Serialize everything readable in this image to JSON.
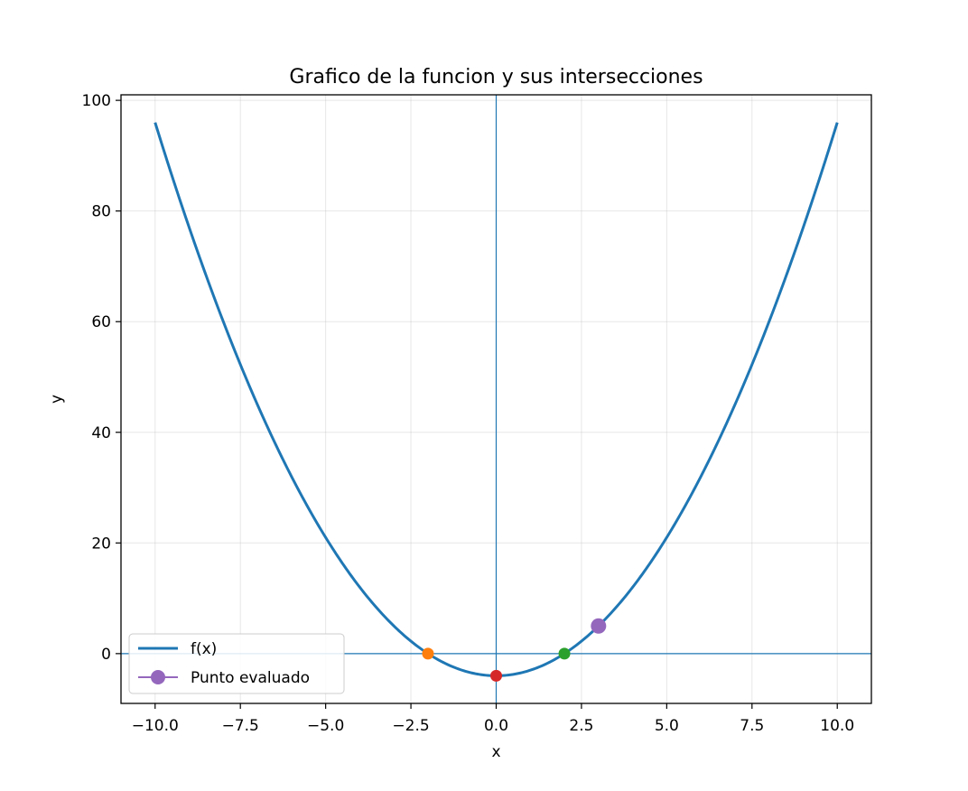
{
  "chart_data": {
    "type": "line",
    "title": "Grafico de la funcion y sus intersecciones",
    "xlabel": "x",
    "ylabel": "y",
    "xlim": [
      -11,
      11
    ],
    "ylim": [
      -9,
      101
    ],
    "x_ticks": [
      -10,
      -7.5,
      -5,
      -2.5,
      0,
      2.5,
      5,
      7.5,
      10
    ],
    "x_tick_labels": [
      "−10.0",
      "−7.5",
      "−5.0",
      "−2.5",
      "0.0",
      "2.5",
      "5.0",
      "7.5",
      "10.0"
    ],
    "y_ticks": [
      0,
      20,
      40,
      60,
      80,
      100
    ],
    "y_tick_labels": [
      "0",
      "20",
      "40",
      "60",
      "80",
      "100"
    ],
    "grid": true,
    "reference_lines": {
      "x": 0,
      "y": 0,
      "color": "#1f77b4"
    },
    "series": [
      {
        "name": "f(x)",
        "kind": "curve",
        "function": "x^2 - 4",
        "x_range": [
          -10,
          10
        ],
        "color": "#1f77b4"
      }
    ],
    "highlight_points": [
      {
        "x": -2,
        "y": 0,
        "color": "#ff7f0e"
      },
      {
        "x": 2,
        "y": 0,
        "color": "#2ca02c"
      },
      {
        "x": 0,
        "y": -4,
        "color": "#d62728"
      }
    ],
    "evaluated_point": {
      "name": "Punto evaluado",
      "x": 3,
      "y": 5,
      "color": "#9467bd"
    },
    "legend": {
      "placement": "lower-left",
      "entries": [
        "f(x)",
        "Punto evaluado"
      ]
    }
  }
}
